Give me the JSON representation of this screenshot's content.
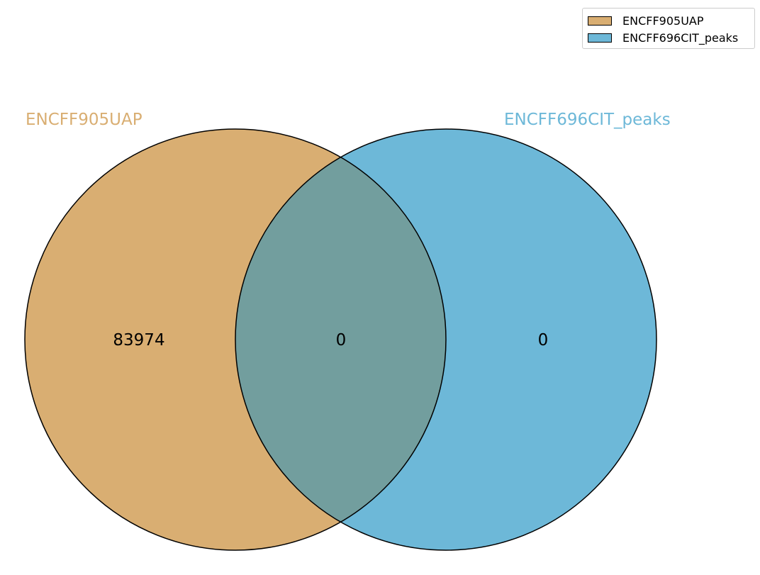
{
  "chart_data": {
    "type": "venn",
    "sets": [
      {
        "name": "ENCFF905UAP",
        "color": "#d9ae72"
      },
      {
        "name": "ENCFF696CIT_peaks",
        "color": "#6db8d8"
      }
    ],
    "overlap_color": "#729e9e",
    "regions": {
      "only_a": "83974",
      "both": "0",
      "only_b": "0"
    },
    "legend_position": "top-right"
  }
}
